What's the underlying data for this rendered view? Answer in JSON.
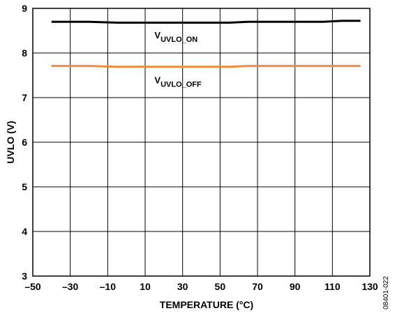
{
  "chart_data": {
    "type": "line",
    "title": "",
    "xlabel": "TEMPERATURE (°C)",
    "ylabel": "UVLO (V)",
    "xlim": [
      -50,
      130
    ],
    "ylim": [
      3,
      9
    ],
    "x_ticks": [
      -50,
      -30,
      -10,
      10,
      30,
      50,
      70,
      90,
      110,
      130
    ],
    "x_tick_labels": [
      "–50",
      "–30",
      "–10",
      "10",
      "30",
      "50",
      "70",
      "90",
      "110",
      "130"
    ],
    "y_ticks": [
      3,
      4,
      5,
      6,
      7,
      8,
      9
    ],
    "y_tick_labels": [
      "3",
      "4",
      "5",
      "6",
      "7",
      "8",
      "9"
    ],
    "grid": true,
    "legend": "none",
    "series": [
      {
        "name": "VUVLO_ON",
        "color": "#000000",
        "x": [
          -40,
          -20,
          -5,
          10,
          25,
          40,
          55,
          65,
          85,
          105,
          115,
          125
        ],
        "y": [
          8.7,
          8.7,
          8.68,
          8.68,
          8.68,
          8.68,
          8.68,
          8.7,
          8.7,
          8.7,
          8.72,
          8.72
        ]
      },
      {
        "name": "VUVLO_OFF",
        "color": "#F28C38",
        "x": [
          -40,
          -20,
          -5,
          10,
          25,
          40,
          55,
          65,
          85,
          105,
          115,
          125
        ],
        "y": [
          7.71,
          7.71,
          7.69,
          7.69,
          7.69,
          7.69,
          7.69,
          7.71,
          7.71,
          7.71,
          7.71,
          7.71
        ]
      }
    ],
    "annotations": [
      {
        "main": "V",
        "sub": "UVLO_ON",
        "x": 15,
        "y": 8.33
      },
      {
        "main": "V",
        "sub": "UVLO_OFF",
        "x": 15,
        "y": 7.32
      }
    ],
    "figure_id": "08401-022"
  }
}
